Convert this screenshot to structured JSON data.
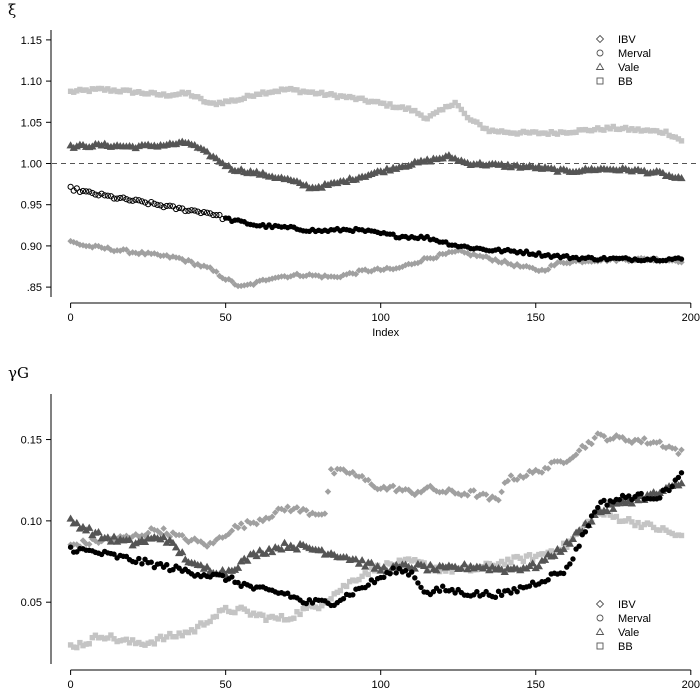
{
  "chart_data": [
    {
      "type": "scatter",
      "ylabel": "ξ",
      "xlabel": "Index",
      "xlim": [
        -6,
        202
      ],
      "ylim": [
        0.838,
        1.162
      ],
      "xticks": [
        0,
        50,
        100,
        150,
        200
      ],
      "xtick_labels": [
        "0",
        "50",
        "100",
        "150",
        "200"
      ],
      "yticks": [
        0.85,
        0.9,
        0.95,
        1.0,
        1.05,
        1.1,
        1.15
      ],
      "ytick_labels": [
        ".85",
        "0.90",
        "0.95",
        "1.00",
        "1.05",
        "1.10",
        "1.15"
      ],
      "reference_line": 1.0,
      "legend_position": "top-right",
      "legend": [
        {
          "name": "IBV",
          "marker": "diamond",
          "color": "#a0a0a0"
        },
        {
          "name": "Merval",
          "marker": "circle",
          "color": "#000000"
        },
        {
          "name": "Vale",
          "marker": "triangle",
          "color": "#555555"
        },
        {
          "name": "BB",
          "marker": "square",
          "color": "#c4c4c4"
        }
      ],
      "series": [
        {
          "name": "IBV",
          "knots": [
            [
              0,
              0.905
            ],
            [
              5,
              0.9
            ],
            [
              15,
              0.895
            ],
            [
              25,
              0.89
            ],
            [
              35,
              0.885
            ],
            [
              45,
              0.872
            ],
            [
              50,
              0.86
            ],
            [
              55,
              0.85
            ],
            [
              60,
              0.855
            ],
            [
              65,
              0.862
            ],
            [
              75,
              0.865
            ],
            [
              85,
              0.862
            ],
            [
              95,
              0.87
            ],
            [
              105,
              0.872
            ],
            [
              115,
              0.885
            ],
            [
              125,
              0.893
            ],
            [
              135,
              0.885
            ],
            [
              145,
              0.875
            ],
            [
              152,
              0.87
            ],
            [
              158,
              0.88
            ],
            [
              170,
              0.883
            ],
            [
              185,
              0.884
            ],
            [
              197,
              0.882
            ]
          ]
        },
        {
          "name": "Merval",
          "knots": [
            [
              0,
              0.97
            ],
            [
              5,
              0.965
            ],
            [
              15,
              0.958
            ],
            [
              25,
              0.952
            ],
            [
              35,
              0.945
            ],
            [
              45,
              0.94
            ],
            [
              50,
              0.933
            ],
            [
              60,
              0.925
            ],
            [
              70,
              0.922
            ],
            [
              80,
              0.918
            ],
            [
              90,
              0.92
            ],
            [
              95,
              0.918
            ],
            [
              105,
              0.912
            ],
            [
              115,
              0.91
            ],
            [
              122,
              0.903
            ],
            [
              125,
              0.9
            ],
            [
              135,
              0.895
            ],
            [
              145,
              0.893
            ],
            [
              155,
              0.888
            ],
            [
              165,
              0.885
            ],
            [
              180,
              0.884
            ],
            [
              197,
              0.884
            ]
          ]
        },
        {
          "name": "Vale",
          "knots": [
            [
              0,
              1.02
            ],
            [
              10,
              1.022
            ],
            [
              20,
              1.02
            ],
            [
              30,
              1.022
            ],
            [
              38,
              1.025
            ],
            [
              45,
              1.01
            ],
            [
              52,
              0.993
            ],
            [
              60,
              0.988
            ],
            [
              70,
              0.98
            ],
            [
              78,
              0.97
            ],
            [
              85,
              0.975
            ],
            [
              95,
              0.985
            ],
            [
              105,
              0.995
            ],
            [
              115,
              1.003
            ],
            [
              122,
              1.008
            ],
            [
              128,
              1.0
            ],
            [
              140,
              0.997
            ],
            [
              150,
              0.995
            ],
            [
              160,
              0.99
            ],
            [
              170,
              0.993
            ],
            [
              180,
              0.992
            ],
            [
              190,
              0.988
            ],
            [
              197,
              0.98
            ]
          ]
        },
        {
          "name": "BB",
          "knots": [
            [
              0,
              1.087
            ],
            [
              10,
              1.09
            ],
            [
              20,
              1.087
            ],
            [
              30,
              1.083
            ],
            [
              38,
              1.085
            ],
            [
              45,
              1.072
            ],
            [
              50,
              1.075
            ],
            [
              55,
              1.078
            ],
            [
              60,
              1.085
            ],
            [
              70,
              1.09
            ],
            [
              80,
              1.085
            ],
            [
              90,
              1.08
            ],
            [
              100,
              1.073
            ],
            [
              110,
              1.065
            ],
            [
              115,
              1.055
            ],
            [
              120,
              1.065
            ],
            [
              124,
              1.075
            ],
            [
              128,
              1.055
            ],
            [
              135,
              1.04
            ],
            [
              145,
              1.037
            ],
            [
              155,
              1.037
            ],
            [
              165,
              1.04
            ],
            [
              175,
              1.043
            ],
            [
              185,
              1.04
            ],
            [
              192,
              1.038
            ],
            [
              197,
              1.028
            ]
          ]
        }
      ]
    },
    {
      "type": "scatter",
      "ylabel": "γG",
      "xlabel": "",
      "xlim": [
        -6,
        202
      ],
      "ylim": [
        0.012,
        0.178
      ],
      "xticks": [
        0,
        50,
        100,
        150,
        200
      ],
      "xtick_labels": [
        "0",
        "50",
        "100",
        "150",
        "200"
      ],
      "yticks": [
        0.05,
        0.1,
        0.15
      ],
      "ytick_labels": [
        "0.05",
        "0.10",
        "0.15"
      ],
      "legend_position": "bottom-right",
      "legend": [
        {
          "name": "IBV",
          "marker": "diamond",
          "color": "#a0a0a0"
        },
        {
          "name": "Merval",
          "marker": "circle",
          "color": "#000000"
        },
        {
          "name": "Vale",
          "marker": "triangle",
          "color": "#555555"
        },
        {
          "name": "BB",
          "marker": "square",
          "color": "#c4c4c4"
        }
      ],
      "series": [
        {
          "name": "IBV",
          "knots": [
            [
              0,
              0.085
            ],
            [
              10,
              0.088
            ],
            [
              20,
              0.09
            ],
            [
              28,
              0.095
            ],
            [
              35,
              0.09
            ],
            [
              45,
              0.085
            ],
            [
              52,
              0.095
            ],
            [
              60,
              0.1
            ],
            [
              70,
              0.108
            ],
            [
              78,
              0.105
            ],
            [
              82,
              0.105
            ],
            [
              84,
              0.13
            ],
            [
              90,
              0.13
            ],
            [
              95,
              0.125
            ],
            [
              100,
              0.12
            ],
            [
              105,
              0.12
            ],
            [
              110,
              0.117
            ],
            [
              115,
              0.12
            ],
            [
              120,
              0.118
            ],
            [
              125,
              0.117
            ],
            [
              130,
              0.117
            ],
            [
              138,
              0.112
            ],
            [
              140,
              0.125
            ],
            [
              150,
              0.13
            ],
            [
              160,
              0.138
            ],
            [
              170,
              0.152
            ],
            [
              180,
              0.15
            ],
            [
              190,
              0.148
            ],
            [
              197,
              0.142
            ]
          ]
        },
        {
          "name": "Merval",
          "knots": [
            [
              0,
              0.083
            ],
            [
              10,
              0.08
            ],
            [
              20,
              0.076
            ],
            [
              30,
              0.072
            ],
            [
              40,
              0.068
            ],
            [
              50,
              0.065
            ],
            [
              60,
              0.058
            ],
            [
              70,
              0.055
            ],
            [
              75,
              0.05
            ],
            [
              80,
              0.05
            ],
            [
              85,
              0.05
            ],
            [
              90,
              0.055
            ],
            [
              95,
              0.06
            ],
            [
              100,
              0.065
            ],
            [
              105,
              0.07
            ],
            [
              110,
              0.068
            ],
            [
              115,
              0.055
            ],
            [
              120,
              0.058
            ],
            [
              130,
              0.055
            ],
            [
              140,
              0.055
            ],
            [
              150,
              0.062
            ],
            [
              160,
              0.07
            ],
            [
              165,
              0.09
            ],
            [
              170,
              0.11
            ],
            [
              180,
              0.115
            ],
            [
              190,
              0.115
            ],
            [
              197,
              0.128
            ]
          ]
        },
        {
          "name": "Vale",
          "knots": [
            [
              0,
              0.1
            ],
            [
              10,
              0.09
            ],
            [
              20,
              0.086
            ],
            [
              30,
              0.09
            ],
            [
              40,
              0.072
            ],
            [
              50,
              0.068
            ],
            [
              60,
              0.08
            ],
            [
              70,
              0.085
            ],
            [
              80,
              0.082
            ],
            [
              90,
              0.077
            ],
            [
              100,
              0.07
            ],
            [
              110,
              0.072
            ],
            [
              120,
              0.07
            ],
            [
              130,
              0.072
            ],
            [
              140,
              0.07
            ],
            [
              150,
              0.072
            ],
            [
              160,
              0.085
            ],
            [
              170,
              0.105
            ],
            [
              180,
              0.112
            ],
            [
              190,
              0.117
            ],
            [
              197,
              0.123
            ]
          ]
        },
        {
          "name": "BB",
          "knots": [
            [
              0,
              0.023
            ],
            [
              5,
              0.025
            ],
            [
              10,
              0.03
            ],
            [
              15,
              0.027
            ],
            [
              20,
              0.025
            ],
            [
              25,
              0.025
            ],
            [
              30,
              0.028
            ],
            [
              35,
              0.03
            ],
            [
              40,
              0.033
            ],
            [
              45,
              0.04
            ],
            [
              50,
              0.045
            ],
            [
              55,
              0.045
            ],
            [
              60,
              0.042
            ],
            [
              65,
              0.04
            ],
            [
              70,
              0.04
            ],
            [
              75,
              0.045
            ],
            [
              80,
              0.048
            ],
            [
              85,
              0.055
            ],
            [
              90,
              0.062
            ],
            [
              95,
              0.068
            ],
            [
              100,
              0.072
            ],
            [
              110,
              0.075
            ],
            [
              120,
              0.07
            ],
            [
              130,
              0.07
            ],
            [
              140,
              0.075
            ],
            [
              150,
              0.078
            ],
            [
              160,
              0.085
            ],
            [
              170,
              0.105
            ],
            [
              180,
              0.1
            ],
            [
              190,
              0.095
            ],
            [
              197,
              0.09
            ]
          ]
        }
      ]
    }
  ],
  "colors": {
    "IBV": "#a0a0a0",
    "Merval": "#000000",
    "Vale": "#555555",
    "BB": "#c4c4c4"
  }
}
